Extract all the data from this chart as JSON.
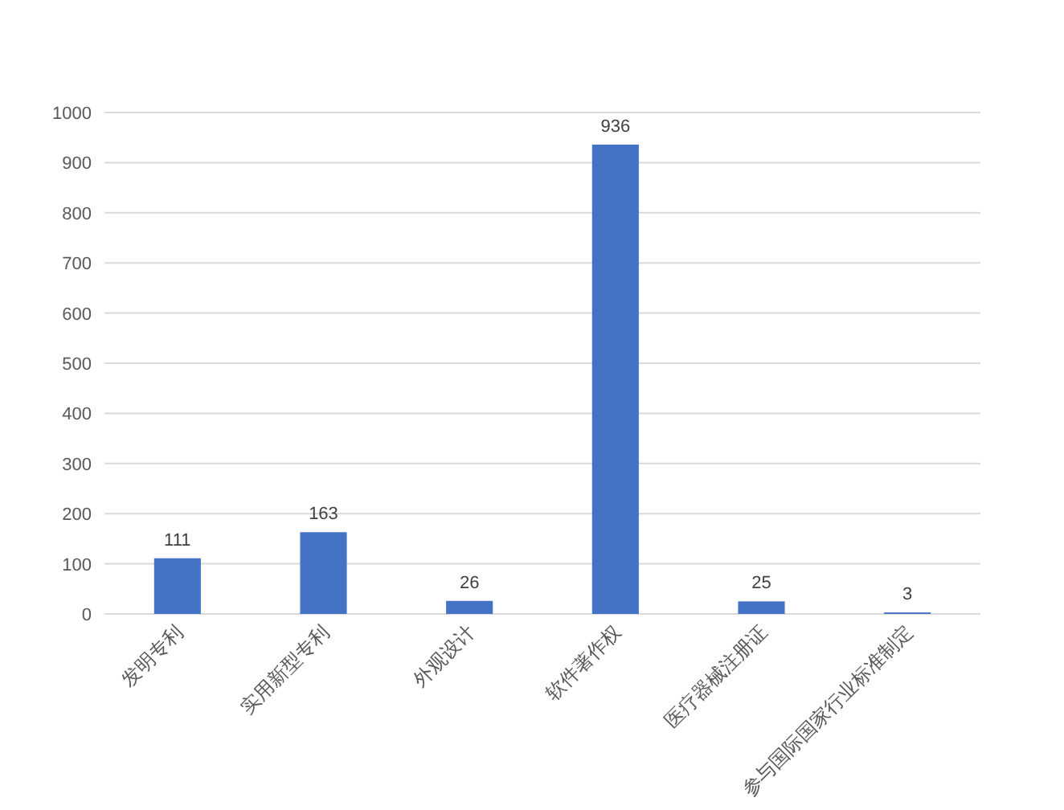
{
  "chart_data": {
    "type": "bar",
    "categories": [
      "发明专利",
      "实用新型专利",
      "外观设计",
      "软件著作权",
      "医疗器械注册证",
      "参与国际国家行业标准制定"
    ],
    "values": [
      111,
      163,
      26,
      936,
      25,
      3
    ],
    "color": "#4472c4",
    "ylim": [
      0,
      1000
    ],
    "yticks": [
      0,
      100,
      200,
      300,
      400,
      500,
      600,
      700,
      800,
      900,
      1000
    ],
    "grid": "y",
    "data_labels": true
  }
}
